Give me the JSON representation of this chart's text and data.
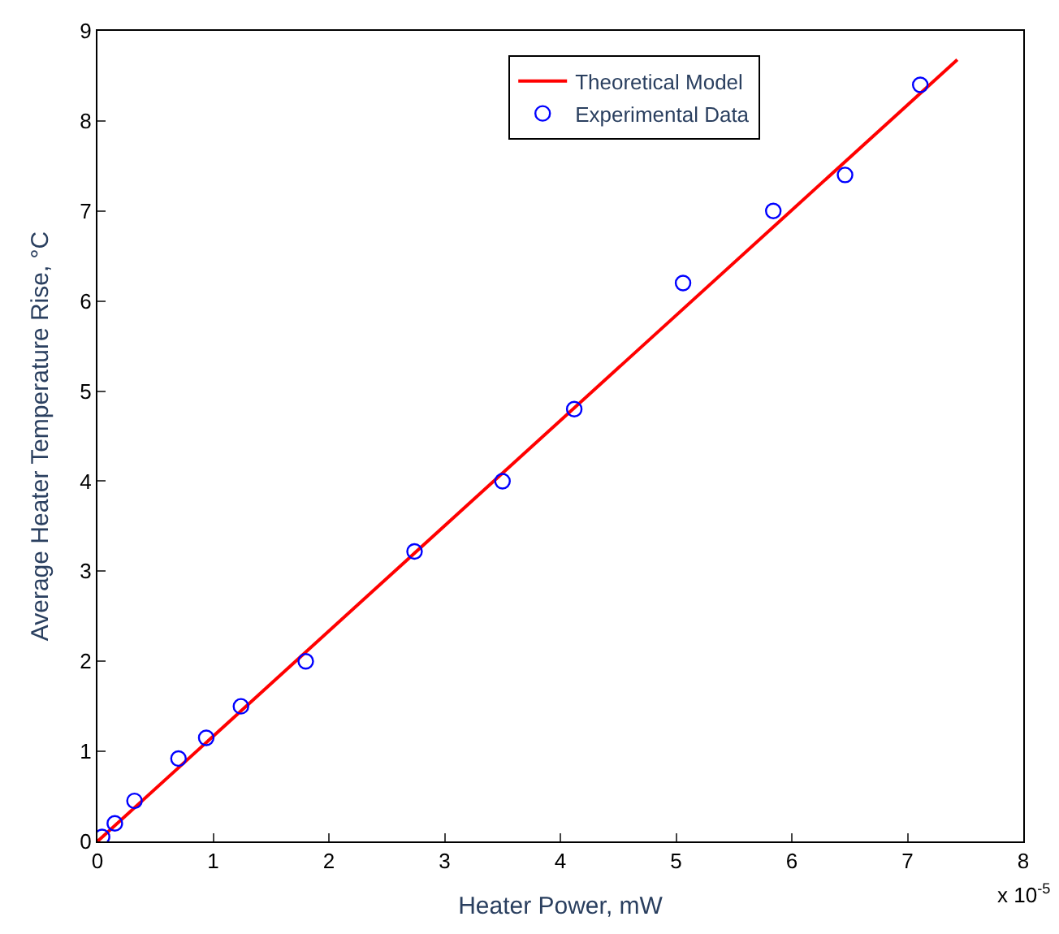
{
  "chart_data": {
    "type": "scatter",
    "xlabel": "Heater Power, mW",
    "ylabel": "Average Heater Temperature Rise, °C",
    "xlim": [
      0,
      8
    ],
    "xticks": [
      0,
      1,
      2,
      3,
      4,
      5,
      6,
      7,
      8
    ],
    "ylim": [
      0,
      9
    ],
    "yticks": [
      0,
      1,
      2,
      3,
      4,
      5,
      6,
      7,
      8,
      9
    ],
    "legend": "top",
    "annotations": [
      "x 10$^{-5}$"
    ],
    "series": [
      {
        "name": "Theoretical Model",
        "type": "line",
        "color": "#ff0000",
        "marker": "none",
        "line_style": "solid",
        "x": [
          0,
          7.43
        ],
        "values": [
          0,
          8.68
        ]
      },
      {
        "name": "Experimental Data",
        "color": "#0000ff",
        "marker": "circle",
        "x": [
          0.04,
          0.15,
          0.32,
          0.7,
          0.94,
          1.24,
          1.8,
          2.74,
          3.5,
          4.12,
          5.06,
          5.84,
          6.46,
          7.11
        ],
        "values": [
          0.05,
          0.2,
          0.45,
          0.92,
          1.15,
          1.5,
          2.0,
          3.22,
          4.0,
          4.8,
          6.2,
          7.0,
          7.4,
          8.4
        ]
      }
    ]
  }
}
